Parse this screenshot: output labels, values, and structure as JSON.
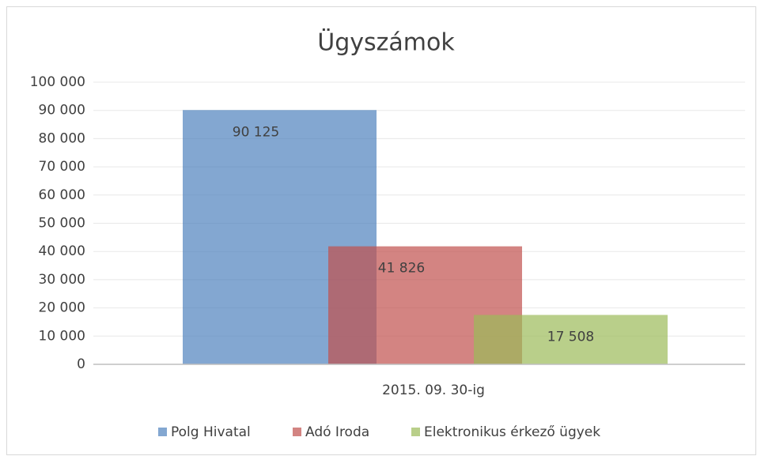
{
  "chart_data": {
    "type": "bar",
    "title": "Ügyszámok",
    "categories": [
      "2015. 09. 30-ig"
    ],
    "series": [
      {
        "name": "Polg Hivatal",
        "color": "#4f81bd",
        "values": [
          90125
        ],
        "value_labels": [
          "90 125"
        ]
      },
      {
        "name": "Adó Iroda",
        "color": "#c0504d",
        "values": [
          41826
        ],
        "value_labels": [
          "41 826"
        ]
      },
      {
        "name": "Elektronikus érkező ügyek",
        "color": "#9bbb59",
        "values": [
          17508
        ],
        "value_labels": [
          "17 508"
        ]
      }
    ],
    "ylim": [
      0,
      100000
    ],
    "yticks": [
      0,
      {
        "value": 10000,
        "label": "10 000"
      },
      {
        "value": 20000,
        "label": "20 000"
      },
      {
        "value": 30000,
        "label": "30 000"
      },
      {
        "value": 40000,
        "label": "40 000"
      },
      {
        "value": 50000,
        "label": "50 000"
      },
      {
        "value": 60000,
        "label": "60 000"
      },
      {
        "value": 70000,
        "label": "70 000"
      },
      {
        "value": 80000,
        "label": "80 000"
      },
      {
        "value": 90000,
        "label": "90 000"
      },
      {
        "value": 100000,
        "label": "100 000"
      }
    ],
    "grid": true,
    "legend": "bottom"
  }
}
